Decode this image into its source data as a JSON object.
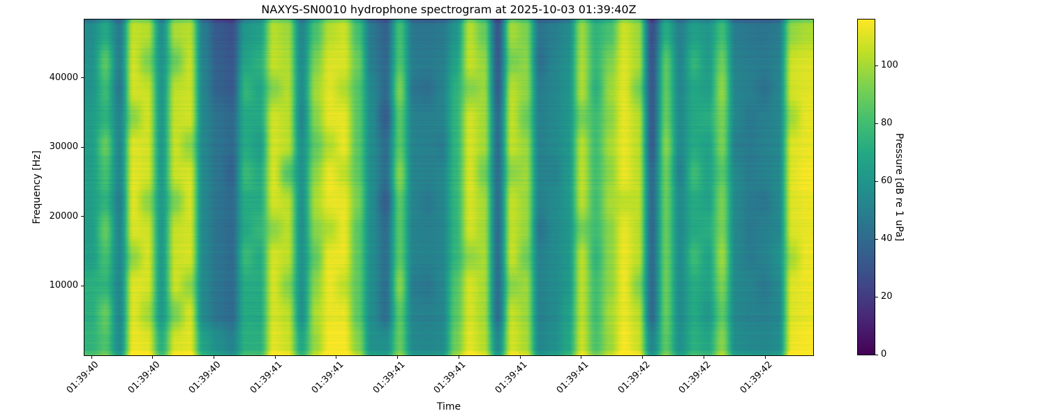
{
  "chart_data": {
    "type": "heatmap",
    "title": "NAXYS-SN0010 hydrophone spectrogram at 2025-10-03 01:39:40Z",
    "xlabel": "Time",
    "ylabel": "Frequency [Hz]",
    "colorbar_label": "Pressure [dB re 1 uPa]",
    "x_tick_labels": [
      "01:39:40",
      "01:39:40",
      "01:39:40",
      "01:39:41",
      "01:39:41",
      "01:39:41",
      "01:39:41",
      "01:39:41",
      "01:39:41",
      "01:39:42",
      "01:39:42",
      "01:39:42"
    ],
    "y_tick_values": [
      10000,
      20000,
      30000,
      40000
    ],
    "y_tick_labels": [
      "10000",
      "20000",
      "30000",
      "40000"
    ],
    "ylim": [
      0,
      48400
    ],
    "colorbar_tick_values": [
      0,
      20,
      40,
      60,
      80,
      100
    ],
    "colorbar_tick_labels": [
      "0",
      "20",
      "40",
      "60",
      "80",
      "100"
    ],
    "clim": [
      0,
      116
    ],
    "legend": "none",
    "grid_lines": "off",
    "colormap": {
      "name": "viridis",
      "stops": [
        "#440154",
        "#482475",
        "#414487",
        "#355f8d",
        "#2a788e",
        "#21918c",
        "#22a884",
        "#44bf70",
        "#7ad151",
        "#bddf26",
        "#fde725"
      ]
    },
    "grid": {
      "rows": 12,
      "cols": 52,
      "row_order": "top-to-bottom (48400 Hz down to 0 Hz)",
      "col_order": "left-to-right (01:39:40 to 01:39:42)",
      "units": "dB re 1 uPa",
      "values_db": [
        [
          56,
          69,
          48,
          105,
          103,
          57,
          101,
          103,
          48,
          33,
          29,
          61,
          65,
          103,
          99,
          53,
          82,
          103,
          107,
          81,
          46,
          37,
          80,
          46,
          45,
          47,
          60,
          103,
          89,
          32,
          100,
          93,
          45,
          49,
          55,
          98,
          75,
          82,
          107,
          99,
          29,
          71,
          50,
          65,
          61,
          79,
          48,
          46,
          45,
          48,
          97,
          101
        ],
        [
          59,
          86,
          51,
          108,
          94,
          60,
          90,
          106,
          51,
          36,
          32,
          68,
          74,
          106,
          102,
          56,
          93,
          110,
          110,
          90,
          49,
          40,
          83,
          49,
          48,
          50,
          67,
          106,
          98,
          35,
          93,
          96,
          43,
          52,
          58,
          101,
          78,
          93,
          110,
          102,
          32,
          86,
          53,
          76,
          64,
          90,
          51,
          49,
          48,
          51,
          108,
          110
        ],
        [
          60,
          79,
          47,
          109,
          107,
          61,
          105,
          107,
          52,
          37,
          33,
          76,
          69,
          95,
          103,
          57,
          100,
          111,
          103,
          85,
          54,
          41,
          93,
          45,
          43,
          51,
          74,
          95,
          99,
          36,
          104,
          97,
          49,
          53,
          59,
          102,
          74,
          99,
          111,
          93,
          33,
          87,
          54,
          69,
          65,
          97,
          52,
          50,
          44,
          52,
          109,
          111
        ],
        [
          64,
          74,
          53,
          96,
          108,
          62,
          106,
          108,
          53,
          44,
          40,
          70,
          70,
          108,
          104,
          53,
          95,
          112,
          112,
          86,
          55,
          34,
          85,
          51,
          50,
          52,
          75,
          108,
          100,
          42,
          105,
          90,
          50,
          54,
          60,
          91,
          80,
          95,
          112,
          104,
          34,
          88,
          55,
          70,
          72,
          92,
          53,
          47,
          50,
          53,
          100,
          112
        ],
        [
          64,
          88,
          53,
          110,
          108,
          62,
          106,
          96,
          53,
          44,
          40,
          70,
          64,
          108,
          104,
          58,
          87,
          102,
          112,
          86,
          55,
          42,
          85,
          51,
          50,
          48,
          75,
          108,
          100,
          42,
          105,
          98,
          50,
          54,
          60,
          103,
          80,
          100,
          112,
          104,
          34,
          94,
          55,
          70,
          66,
          92,
          49,
          47,
          50,
          53,
          110,
          112
        ],
        [
          65,
          81,
          54,
          111,
          109,
          63,
          107,
          109,
          54,
          45,
          37,
          78,
          71,
          109,
          85,
          59,
          96,
          113,
          105,
          87,
          56,
          43,
          95,
          52,
          51,
          53,
          76,
          109,
          91,
          43,
          96,
          99,
          51,
          51,
          61,
          104,
          81,
          96,
          113,
          105,
          41,
          89,
          51,
          79,
          67,
          85,
          54,
          48,
          51,
          54,
          111,
          115
        ],
        [
          65,
          75,
          50,
          111,
          97,
          63,
          93,
          109,
          54,
          45,
          41,
          71,
          71,
          109,
          105,
          59,
          102,
          113,
          113,
          93,
          56,
          35,
          86,
          52,
          47,
          53,
          76,
          109,
          101,
          43,
          106,
          99,
          51,
          55,
          61,
          104,
          81,
          101,
          105,
          105,
          41,
          89,
          56,
          71,
          67,
          93,
          54,
          48,
          46,
          54,
          111,
          113
        ],
        [
          64,
          88,
          53,
          110,
          108,
          62,
          106,
          108,
          53,
          44,
          40,
          70,
          76,
          96,
          104,
          58,
          95,
          102,
          112,
          86,
          55,
          42,
          85,
          51,
          50,
          52,
          75,
          108,
          100,
          42,
          105,
          98,
          45,
          54,
          60,
          91,
          80,
          95,
          112,
          104,
          40,
          88,
          55,
          70,
          72,
          92,
          53,
          47,
          50,
          53,
          110,
          112
        ],
        [
          65,
          81,
          54,
          97,
          109,
          63,
          107,
          109,
          54,
          45,
          41,
          78,
          71,
          109,
          105,
          59,
          88,
          113,
          113,
          87,
          56,
          43,
          86,
          52,
          51,
          53,
          76,
          97,
          101,
          43,
          106,
          91,
          51,
          55,
          61,
          104,
          76,
          96,
          113,
          105,
          41,
          89,
          56,
          79,
          67,
          99,
          54,
          48,
          51,
          58,
          101,
          113
        ],
        [
          73,
          75,
          54,
          111,
          109,
          63,
          107,
          97,
          54,
          45,
          41,
          71,
          71,
          109,
          95,
          59,
          96,
          113,
          105,
          87,
          56,
          43,
          95,
          48,
          46,
          53,
          84,
          109,
          101,
          43,
          96,
          99,
          51,
          55,
          61,
          104,
          81,
          96,
          113,
          95,
          41,
          89,
          56,
          71,
          67,
          93,
          54,
          52,
          47,
          54,
          111,
          113
        ],
        [
          72,
          88,
          53,
          110,
          100,
          62,
          92,
          108,
          53,
          44,
          40,
          70,
          70,
          108,
          104,
          58,
          101,
          112,
          112,
          86,
          55,
          42,
          85,
          51,
          50,
          52,
          85,
          108,
          100,
          42,
          105,
          98,
          50,
          54,
          65,
          103,
          80,
          100,
          112,
          104,
          40,
          88,
          55,
          70,
          61,
          86,
          53,
          51,
          50,
          53,
          110,
          112
        ],
        [
          75,
          83,
          56,
          113,
          111,
          73,
          109,
          111,
          66,
          57,
          51,
          73,
          73,
          111,
          107,
          69,
          98,
          115,
          115,
          95,
          58,
          57,
          88,
          54,
          53,
          55,
          90,
          111,
          103,
          55,
          108,
          101,
          53,
          57,
          68,
          106,
          83,
          98,
          115,
          107,
          53,
          86,
          58,
          73,
          69,
          95,
          56,
          54,
          53,
          56,
          113,
          115
        ]
      ]
    }
  }
}
